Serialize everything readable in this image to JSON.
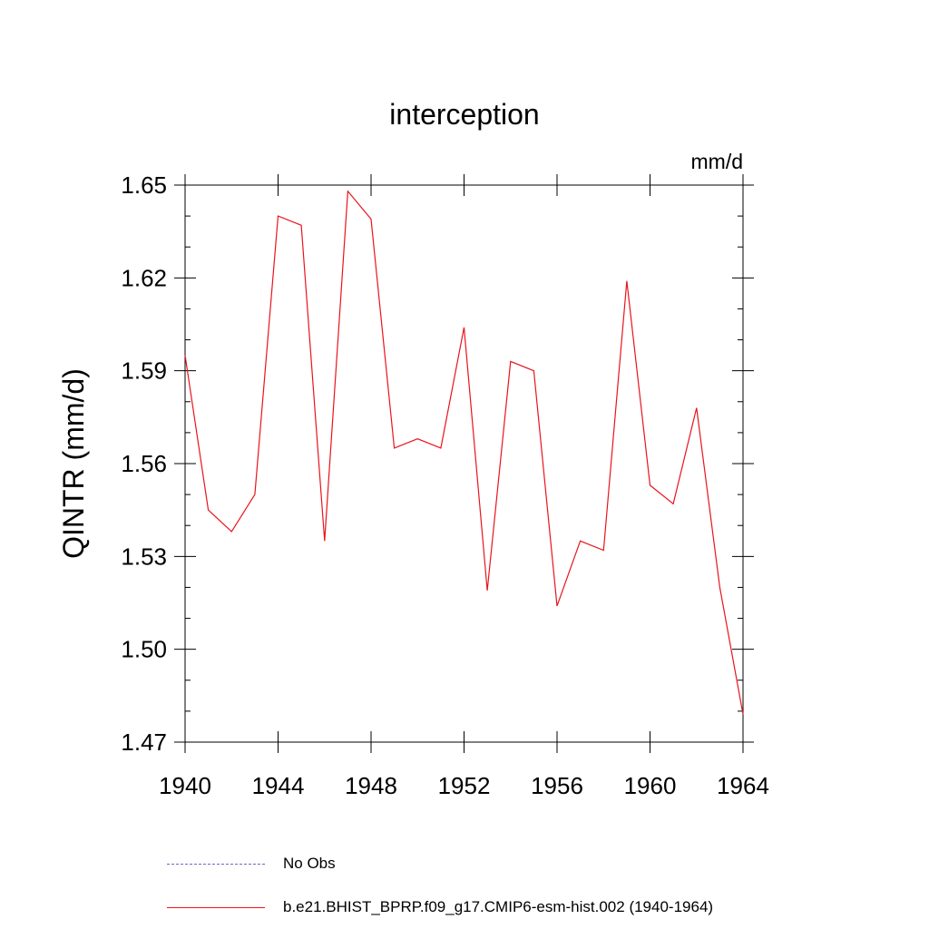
{
  "chart_data": {
    "type": "line",
    "title": "interception",
    "units_label": "mm/d",
    "xlabel": "",
    "ylabel": "QINTR  (mm/d)",
    "xlim": [
      1940,
      1964
    ],
    "ylim": [
      1.47,
      1.65
    ],
    "x_ticks": [
      1940,
      1944,
      1948,
      1952,
      1956,
      1960,
      1964
    ],
    "x_tick_labels": [
      "1940",
      "1944",
      "1948",
      "1952",
      "1956",
      "1960",
      "1964"
    ],
    "y_ticks": [
      1.47,
      1.5,
      1.53,
      1.56,
      1.59,
      1.62,
      1.65
    ],
    "y_tick_labels": [
      "1.47",
      "1.50",
      "1.53",
      "1.56",
      "1.59",
      "1.62",
      "1.65"
    ],
    "grid": false,
    "legend_position": "bottom",
    "series": [
      {
        "name": "b.e21.BHIST_BPRP.f09_g17.CMIP6-esm-hist.002 (1940-1964)",
        "color": "#e8141b",
        "style": "solid",
        "x": [
          1940,
          1941,
          1942,
          1943,
          1944,
          1945,
          1946,
          1947,
          1948,
          1949,
          1950,
          1951,
          1952,
          1953,
          1954,
          1955,
          1956,
          1957,
          1958,
          1959,
          1960,
          1961,
          1962,
          1963,
          1964
        ],
        "y": [
          1.595,
          1.545,
          1.538,
          1.55,
          1.64,
          1.637,
          1.535,
          1.648,
          1.639,
          1.565,
          1.568,
          1.565,
          1.604,
          1.519,
          1.593,
          1.59,
          1.514,
          1.535,
          1.532,
          1.619,
          1.553,
          1.547,
          1.578,
          1.52,
          1.479
        ]
      }
    ],
    "legend": [
      {
        "label": "No Obs",
        "color": "#6a6ac8",
        "style": "dashed"
      },
      {
        "label": "b.e21.BHIST_BPRP.f09_g17.CMIP6-esm-hist.002 (1940-1964)",
        "color": "#e8141b",
        "style": "solid"
      }
    ]
  }
}
